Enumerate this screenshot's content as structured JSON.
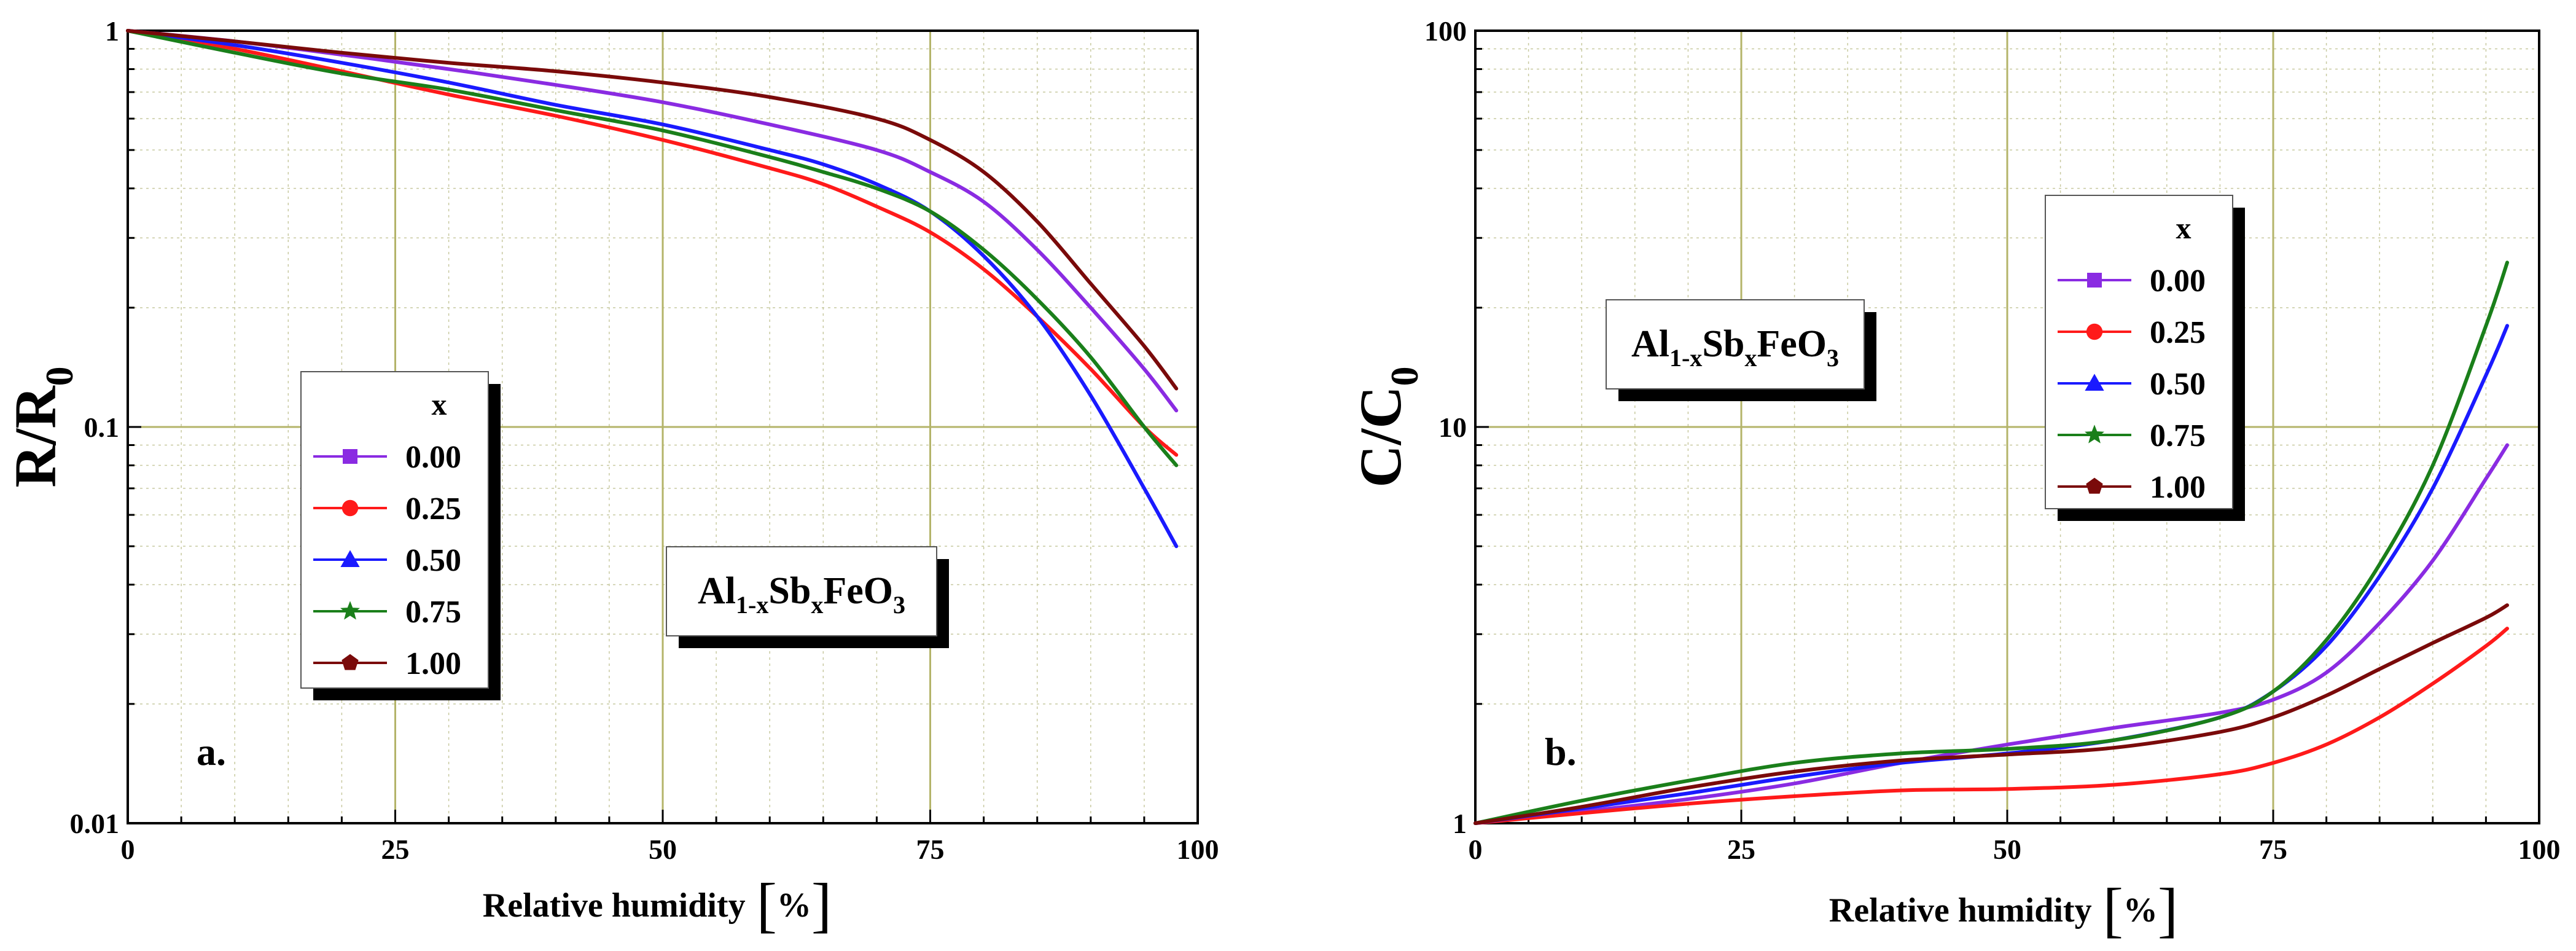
{
  "chart_data": [
    {
      "type": "line",
      "panel": "a.",
      "ylabel_main": "R/R",
      "ylabel_sub": "0",
      "xlabel": "Relative humidity",
      "xunit": "%",
      "yscale": "log",
      "xlim": [
        0,
        100
      ],
      "ylim": [
        0.01,
        1
      ],
      "xticks": [
        "0",
        "25",
        "50",
        "75",
        "100"
      ],
      "yticks": [
        "1",
        "0.1",
        "0.01"
      ],
      "grid": true,
      "legend_position": "center-left",
      "legend_title": "x",
      "formula": {
        "a": "Al",
        "a_sub": "1-x",
        "b": "Sb",
        "b_sub": "x",
        "c": "FeO",
        "c_sub": "3"
      },
      "series": [
        {
          "name": "0.00",
          "color": "#8a2be2",
          "marker": "square",
          "x": [
            0,
            10,
            20,
            30,
            40,
            50,
            60,
            70,
            75,
            80,
            85,
            90,
            95,
            98
          ],
          "y": [
            1,
            0.94,
            0.87,
            0.8,
            0.73,
            0.66,
            0.58,
            0.5,
            0.44,
            0.37,
            0.28,
            0.2,
            0.14,
            0.11
          ]
        },
        {
          "name": "0.25",
          "color": "#ff1a1a",
          "marker": "circle",
          "x": [
            0,
            10,
            20,
            30,
            40,
            50,
            60,
            65,
            70,
            75,
            80,
            85,
            90,
            95,
            98
          ],
          "y": [
            1,
            0.9,
            0.79,
            0.69,
            0.61,
            0.53,
            0.45,
            0.41,
            0.36,
            0.31,
            0.25,
            0.19,
            0.14,
            0.1,
            0.085
          ]
        },
        {
          "name": "0.50",
          "color": "#1a1aff",
          "marker": "triangle",
          "x": [
            0,
            10,
            20,
            30,
            40,
            50,
            60,
            65,
            70,
            75,
            80,
            85,
            90,
            95,
            98
          ],
          "y": [
            1,
            0.92,
            0.83,
            0.74,
            0.65,
            0.58,
            0.5,
            0.46,
            0.41,
            0.35,
            0.27,
            0.19,
            0.12,
            0.07,
            0.05
          ]
        },
        {
          "name": "0.75",
          "color": "#1a7f1a",
          "marker": "star",
          "x": [
            0,
            10,
            20,
            30,
            40,
            50,
            60,
            65,
            70,
            75,
            80,
            85,
            90,
            95,
            98
          ],
          "y": [
            1,
            0.88,
            0.78,
            0.71,
            0.63,
            0.56,
            0.48,
            0.44,
            0.4,
            0.35,
            0.28,
            0.21,
            0.15,
            0.1,
            0.08
          ]
        },
        {
          "name": "1.00",
          "color": "#7a0a0a",
          "marker": "pentagon",
          "x": [
            0,
            10,
            20,
            30,
            40,
            50,
            60,
            70,
            75,
            80,
            85,
            90,
            95,
            98
          ],
          "y": [
            1,
            0.94,
            0.88,
            0.83,
            0.79,
            0.74,
            0.68,
            0.6,
            0.53,
            0.44,
            0.33,
            0.23,
            0.16,
            0.125
          ]
        }
      ]
    },
    {
      "type": "line",
      "panel": "b.",
      "ylabel_main": "C/C",
      "ylabel_sub": "0",
      "xlabel": "Relative humidity",
      "xunit": "%",
      "yscale": "log",
      "xlim": [
        0,
        100
      ],
      "ylim": [
        1,
        100
      ],
      "xticks": [
        "0",
        "25",
        "50",
        "75",
        "100"
      ],
      "yticks": [
        "100",
        "10",
        "1"
      ],
      "grid": true,
      "legend_position": "upper-right",
      "legend_title": "x",
      "formula": {
        "a": "Al",
        "a_sub": "1-x",
        "b": "Sb",
        "b_sub": "x",
        "c": "FeO",
        "c_sub": "3"
      },
      "series": [
        {
          "name": "0.00",
          "color": "#8a2be2",
          "marker": "square",
          "x": [
            0,
            10,
            20,
            30,
            40,
            50,
            60,
            70,
            75,
            80,
            85,
            90,
            95,
            97
          ],
          "y": [
            1,
            1.07,
            1.15,
            1.26,
            1.42,
            1.58,
            1.74,
            1.9,
            2.05,
            2.4,
            3.2,
            4.6,
            7.4,
            9.0
          ]
        },
        {
          "name": "0.25",
          "color": "#ff1a1a",
          "marker": "circle",
          "x": [
            0,
            10,
            20,
            30,
            40,
            50,
            60,
            70,
            75,
            80,
            85,
            90,
            95,
            97
          ],
          "y": [
            1,
            1.06,
            1.12,
            1.17,
            1.21,
            1.22,
            1.25,
            1.33,
            1.42,
            1.58,
            1.85,
            2.25,
            2.8,
            3.1
          ]
        },
        {
          "name": "0.50",
          "color": "#1a1aff",
          "marker": "triangle",
          "x": [
            0,
            10,
            20,
            30,
            40,
            50,
            60,
            70,
            75,
            80,
            85,
            90,
            95,
            97
          ],
          "y": [
            1,
            1.09,
            1.19,
            1.31,
            1.42,
            1.5,
            1.62,
            1.85,
            2.15,
            2.8,
            4.2,
            7.0,
            13.5,
            18.0
          ]
        },
        {
          "name": "0.75",
          "color": "#1a7f1a",
          "marker": "star",
          "x": [
            0,
            10,
            20,
            30,
            40,
            50,
            60,
            70,
            75,
            80,
            85,
            90,
            95,
            97
          ],
          "y": [
            1,
            1.14,
            1.28,
            1.42,
            1.5,
            1.54,
            1.62,
            1.85,
            2.15,
            2.9,
            4.5,
            8.0,
            18.0,
            26.0
          ]
        },
        {
          "name": "1.00",
          "color": "#7a0a0a",
          "marker": "pentagon",
          "x": [
            0,
            10,
            20,
            30,
            40,
            50,
            60,
            70,
            75,
            80,
            85,
            90,
            95,
            97
          ],
          "y": [
            1,
            1.1,
            1.23,
            1.35,
            1.44,
            1.49,
            1.55,
            1.7,
            1.85,
            2.1,
            2.45,
            2.85,
            3.3,
            3.55
          ]
        }
      ]
    }
  ]
}
